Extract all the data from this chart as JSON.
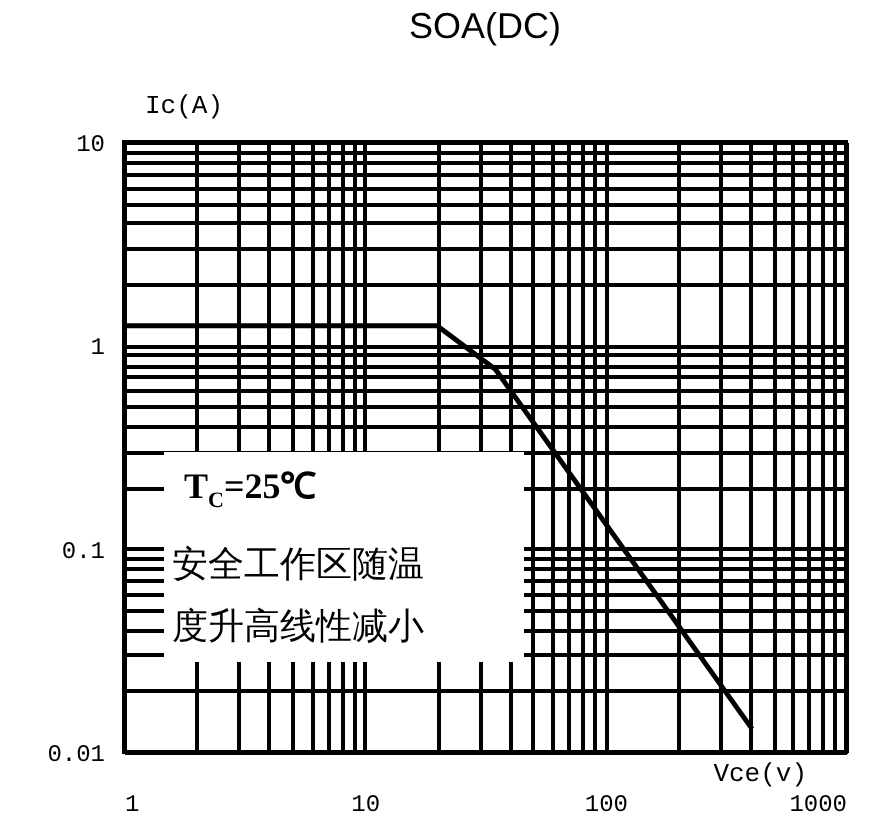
{
  "chart_data": {
    "type": "line",
    "title": "SOA(DC)",
    "xlabel": "Vce(v)",
    "ylabel": "Ic(A)",
    "x": [
      1,
      20,
      35,
      407
    ],
    "series": [
      {
        "color": "#000000",
        "values": [
          1.25,
          1.25,
          0.76,
          0.013
        ]
      }
    ],
    "log": "xy",
    "xlim": [
      1,
      1000
    ],
    "ylim": [
      0.01,
      10
    ],
    "xticks": [
      1,
      10,
      100,
      1000
    ],
    "yticks": [
      0.01,
      0.1,
      1,
      10
    ],
    "grid": true,
    "marker": "none",
    "line_style": "solid",
    "annotations": [
      "T$_{C}$=25℃",
      "安全工作区随温",
      "度升高线性减小"
    ]
  }
}
